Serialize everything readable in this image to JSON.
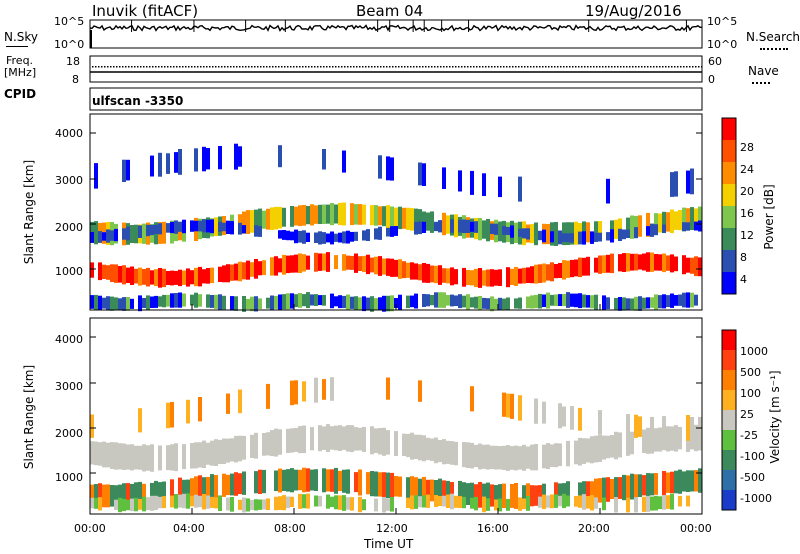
{
  "header": {
    "station": "Inuvik (fitACF)",
    "beam": "Beam 04",
    "date": "19/Aug/2016"
  },
  "noise_panel": {
    "left_label": "N.Sky",
    "right_label": "N.Search",
    "left_ticks": [
      "10^5",
      "10^0"
    ],
    "right_ticks": [
      "10^5",
      "10^0"
    ]
  },
  "freq_panel": {
    "left_label_1": "Freq.",
    "left_label_2": "[MHz]",
    "right_label": "Nave",
    "left_ticks": [
      "18",
      "8"
    ],
    "right_ticks": [
      "60",
      "0"
    ]
  },
  "cpid": {
    "label": "CPID",
    "value": "ulfscan -3350"
  },
  "x_axis": {
    "title": "Time UT",
    "ticks": [
      "00:00",
      "04:00",
      "08:00",
      "12:00",
      "16:00",
      "20:00",
      "00:00"
    ]
  },
  "power_panel": {
    "ylabel": "Slant Range [km]",
    "yticks": [
      "4000",
      "3000",
      "2000",
      "1000"
    ],
    "colorbar_title": "Power [dB]",
    "colorbar_ticks": [
      "28",
      "24",
      "20",
      "16",
      "12",
      "8",
      "4"
    ],
    "colors": [
      "#0000ff",
      "#2a4fb0",
      "#3a8a5a",
      "#7fc64f",
      "#f5d000",
      "#ff8c00",
      "#ff5000",
      "#ff0000"
    ]
  },
  "velocity_panel": {
    "ylabel": "Slant Range [km]",
    "yticks": [
      "4000",
      "3000",
      "2000",
      "1000"
    ],
    "colorbar_title": "Velocity [m s⁻¹]",
    "colorbar_ticks": [
      "1000",
      "500",
      "100",
      "25",
      "-25",
      "-100",
      "-500",
      "-1000"
    ],
    "colors": [
      "#1a3cc8",
      "#2f6fa8",
      "#3c8a5c",
      "#5fc040",
      "#c8c8c0",
      "#ffb020",
      "#ff8000",
      "#ff4010",
      "#ff0000"
    ]
  }
}
